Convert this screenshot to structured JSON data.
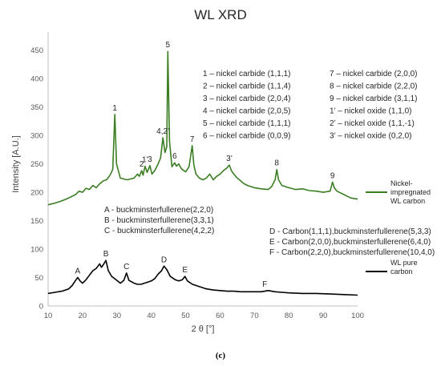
{
  "chart_data": {
    "type": "line",
    "title": "WL XRD",
    "xlabel": "2 θ [°]",
    "ylabel": "Intensity [A.U.]",
    "xlim": [
      10,
      100
    ],
    "ylim": [
      0,
      475
    ],
    "x_ticks": [
      "10",
      "20",
      "30",
      "40",
      "50",
      "60",
      "70",
      "80",
      "90",
      "100"
    ],
    "y_ticks": [
      "0",
      "50",
      "100",
      "150",
      "200",
      "250",
      "300",
      "350",
      "400",
      "450"
    ],
    "grid": false,
    "legend_position": "right",
    "caption": "(c)",
    "series": [
      {
        "name": "Nickel-impregnated WL carbon",
        "legend_lines": [
          "Nickel-",
          "impregnated",
          "WL carbon"
        ],
        "color": "#3a7d22",
        "points": [
          [
            10,
            178
          ],
          [
            12,
            181
          ],
          [
            14,
            185
          ],
          [
            16,
            190
          ],
          [
            18,
            196
          ],
          [
            19,
            202
          ],
          [
            20,
            200
          ],
          [
            21,
            207
          ],
          [
            22,
            205
          ],
          [
            23,
            212
          ],
          [
            24,
            208
          ],
          [
            25,
            215
          ],
          [
            26,
            220
          ],
          [
            27,
            222
          ],
          [
            28,
            230
          ],
          [
            28.8,
            240
          ],
          [
            29.4,
            337
          ],
          [
            29.9,
            250
          ],
          [
            31,
            225
          ],
          [
            33,
            222
          ],
          [
            35,
            225
          ],
          [
            36,
            232
          ],
          [
            36.5,
            228
          ],
          [
            37.2,
            238
          ],
          [
            37.6,
            230
          ],
          [
            38.2,
            246
          ],
          [
            38.8,
            235
          ],
          [
            39.6,
            247
          ],
          [
            40.2,
            232
          ],
          [
            41,
            238
          ],
          [
            42,
            250
          ],
          [
            42.7,
            260
          ],
          [
            43.4,
            296
          ],
          [
            44,
            270
          ],
          [
            44.5,
            280
          ],
          [
            44.8,
            448
          ],
          [
            45.3,
            290
          ],
          [
            46,
            245
          ],
          [
            46.8,
            252
          ],
          [
            47.3,
            246
          ],
          [
            48,
            250
          ],
          [
            48.5,
            244
          ],
          [
            49,
            240
          ],
          [
            50,
            236
          ],
          [
            51,
            245
          ],
          [
            51.9,
            282
          ],
          [
            52.4,
            248
          ],
          [
            53,
            232
          ],
          [
            54,
            225
          ],
          [
            55,
            222
          ],
          [
            56,
            225
          ],
          [
            57,
            232
          ],
          [
            58,
            222
          ],
          [
            59,
            228
          ],
          [
            60,
            232
          ],
          [
            61,
            238
          ],
          [
            62,
            243
          ],
          [
            62.7,
            248
          ],
          [
            63.3,
            238
          ],
          [
            64,
            232
          ],
          [
            65,
            225
          ],
          [
            66,
            220
          ],
          [
            67,
            215
          ],
          [
            68,
            212
          ],
          [
            70,
            208
          ],
          [
            72,
            206
          ],
          [
            74,
            205
          ],
          [
            75,
            210
          ],
          [
            76,
            222
          ],
          [
            76.5,
            240
          ],
          [
            77,
            222
          ],
          [
            78,
            212
          ],
          [
            80,
            208
          ],
          [
            82,
            205
          ],
          [
            84,
            206
          ],
          [
            86,
            203
          ],
          [
            88,
            202
          ],
          [
            90,
            200
          ],
          [
            92,
            202
          ],
          [
            92.7,
            218
          ],
          [
            93.2,
            208
          ],
          [
            94,
            202
          ],
          [
            96,
            196
          ],
          [
            98,
            190
          ],
          [
            100,
            188
          ]
        ],
        "peak_labels": [
          {
            "label": "1",
            "x": 29.4,
            "y": 337
          },
          {
            "label": "2",
            "x": 37.2,
            "y": 238
          },
          {
            "label": "1’",
            "x": 38.2,
            "y": 246
          },
          {
            "label": "3",
            "x": 39.6,
            "y": 247
          },
          {
            "label": "4,2’",
            "x": 43.4,
            "y": 296
          },
          {
            "label": "5",
            "x": 44.8,
            "y": 448
          },
          {
            "label": "6",
            "x": 46.8,
            "y": 252
          },
          {
            "label": "7",
            "x": 51.9,
            "y": 282
          },
          {
            "label": "3’",
            "x": 62.7,
            "y": 248
          },
          {
            "label": "8",
            "x": 76.5,
            "y": 240
          },
          {
            "label": "9",
            "x": 92.7,
            "y": 218
          }
        ]
      },
      {
        "name": "WL pure carbon",
        "legend_lines": [
          "WL pure",
          "carbon"
        ],
        "color": "#000000",
        "points": [
          [
            10,
            22
          ],
          [
            12,
            24
          ],
          [
            14,
            26
          ],
          [
            16,
            30
          ],
          [
            17,
            36
          ],
          [
            18,
            45
          ],
          [
            18.6,
            50
          ],
          [
            19.3,
            44
          ],
          [
            20,
            40
          ],
          [
            21,
            46
          ],
          [
            22,
            54
          ],
          [
            23,
            62
          ],
          [
            24,
            66
          ],
          [
            25,
            74
          ],
          [
            25.5,
            68
          ],
          [
            26,
            72
          ],
          [
            26.8,
            80
          ],
          [
            27.5,
            62
          ],
          [
            28.5,
            52
          ],
          [
            30,
            45
          ],
          [
            31,
            40
          ],
          [
            32,
            45
          ],
          [
            32.8,
            58
          ],
          [
            33.5,
            45
          ],
          [
            35,
            40
          ],
          [
            36,
            38
          ],
          [
            37,
            38
          ],
          [
            38,
            40
          ],
          [
            39,
            42
          ],
          [
            40,
            44
          ],
          [
            41,
            48
          ],
          [
            42,
            56
          ],
          [
            43,
            62
          ],
          [
            43.7,
            70
          ],
          [
            44.5,
            64
          ],
          [
            45.5,
            52
          ],
          [
            47,
            46
          ],
          [
            48,
            44
          ],
          [
            49,
            46
          ],
          [
            49.8,
            52
          ],
          [
            50.5,
            44
          ],
          [
            52,
            38
          ],
          [
            54,
            34
          ],
          [
            56,
            30
          ],
          [
            58,
            28
          ],
          [
            60,
            27
          ],
          [
            62,
            26
          ],
          [
            64,
            26
          ],
          [
            66,
            25
          ],
          [
            68,
            25
          ],
          [
            70,
            25
          ],
          [
            72,
            25
          ],
          [
            74,
            27
          ],
          [
            76,
            25
          ],
          [
            78,
            24
          ],
          [
            80,
            23
          ],
          [
            84,
            22
          ],
          [
            88,
            22
          ],
          [
            92,
            21
          ],
          [
            96,
            20
          ],
          [
            100,
            19
          ]
        ],
        "peak_labels": [
          {
            "label": "A",
            "x": 18.6,
            "y": 50
          },
          {
            "label": "B",
            "x": 26.8,
            "y": 80
          },
          {
            "label": "C",
            "x": 32.8,
            "y": 58
          },
          {
            "label": "D",
            "x": 43.7,
            "y": 70
          },
          {
            "label": "E",
            "x": 49.8,
            "y": 52
          },
          {
            "label": "F",
            "x": 73,
            "y": 27
          }
        ]
      }
    ],
    "annotations": {
      "nickel_col1": [
        "1 – nickel carbide (1,1,1)",
        "2 – nickel carbide (1,1,4)",
        "3 – nickel carbide (2,0,4)",
        "4 – nickel carbide (2,0,5)",
        "5 – nickel carbide (1,1,1)",
        "6 – nickel carbide (0,0,9)"
      ],
      "nickel_col2": [
        "7 – nickel carbide (2,0,0)",
        "8 – nickel carbide (2,2,0)",
        "9 – nickel carbide (3,1,1)",
        "1’ – nickel oxide (1,1,0)",
        "2’ – nickel oxide (1,1,-1)",
        "3’ – nickel oxide (0,2,0)"
      ],
      "carbon_col1": [
        "A - buckminsterfullerene(2,2,0)",
        "B - buckminsterfullerene(3,3,1)",
        "C - buckminsterfullerene(4,2,2)"
      ],
      "carbon_col2": [
        "D - Carbon(1,1,1),buckminsterfullerene(5,3,3)",
        "E - Carbon(2,0,0),buckminsterfullerene(6,4,0)",
        "F - Carbon(2,2,0),buckminsterfullerene(10,4,0)"
      ]
    }
  }
}
